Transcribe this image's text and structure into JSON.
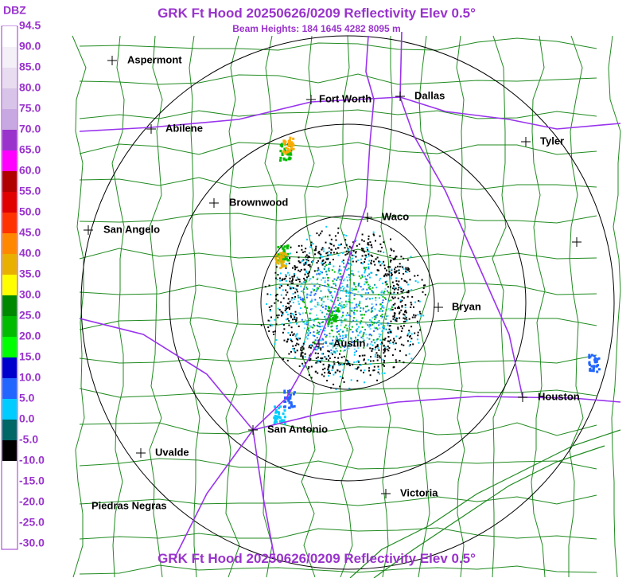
{
  "header": {
    "title": "GRK Ft Hood 20250626/0209 Reflectivity Elev 0.5°",
    "subtitle": "Beam Heights: 184 1645 4282 8095 m"
  },
  "legend": {
    "unit": "DBZ",
    "labels": [
      "94.5",
      "90.0",
      "85.0",
      "80.0",
      "75.0",
      "70.0",
      "65.0",
      "60.0",
      "55.0",
      "50.0",
      "45.0",
      "40.0",
      "35.0",
      "30.0",
      "25.0",
      "20.0",
      "15.0",
      "10.0",
      "5.0",
      "0.0",
      "-5.0",
      "-10.0",
      "-15.0",
      "-20.0",
      "-25.0",
      "-30.0"
    ]
  },
  "cities": [
    "Aspermont",
    "Abilene",
    "Fort Worth",
    "Dallas",
    "Tyler",
    "Brownwood",
    "Waco",
    "San Angelo",
    "Bryan",
    "Austin",
    "Houston",
    "San Antonio",
    "Uvalde",
    "Victoria",
    "Piedras Negras"
  ],
  "footer": {
    "title": "GRK Ft Hood 20250626/0209 Reflectivity Elev 0.5°"
  }
}
